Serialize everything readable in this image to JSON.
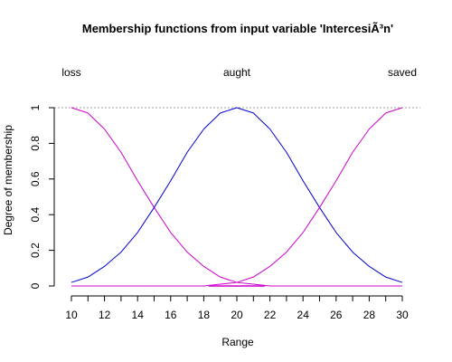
{
  "chart_data": {
    "type": "line",
    "title": "Membership functions from input variable 'IntercesiÃ³n'",
    "xlabel": "Range",
    "ylabel": "Degree of membership",
    "xlim": [
      10,
      30
    ],
    "ylim": [
      0,
      1
    ],
    "x_ticks": [
      10,
      12,
      14,
      16,
      18,
      20,
      22,
      24,
      26,
      28,
      30
    ],
    "x_tick_labels": [
      "10",
      "12",
      "14",
      "16",
      "18",
      "20",
      "22",
      "24",
      "26",
      "28",
      "30"
    ],
    "y_ticks": [
      0,
      0.2,
      0.4,
      0.6,
      0.8,
      1
    ],
    "y_tick_labels": [
      "0",
      "0.2",
      "0.4",
      "0.6",
      "0.8",
      "1"
    ],
    "reference_line_y": 1,
    "grid": false,
    "x": [
      10,
      11,
      12,
      13,
      14,
      15,
      16,
      17,
      18,
      19,
      20,
      21,
      22,
      23,
      24,
      25,
      26,
      27,
      28,
      29,
      30
    ],
    "series": [
      {
        "name": "loss",
        "color": "#cc00cc",
        "values": [
          1,
          0.97,
          0.88,
          0.75,
          0.59,
          0.44,
          0.3,
          0.19,
          0.11,
          0.05,
          0.02,
          0.01,
          0,
          0,
          0,
          0,
          0,
          0,
          0,
          0,
          0
        ]
      },
      {
        "name": "aught",
        "color": "#0000cc",
        "values": [
          0.02,
          0.05,
          0.11,
          0.19,
          0.3,
          0.44,
          0.59,
          0.75,
          0.88,
          0.97,
          1,
          0.97,
          0.88,
          0.75,
          0.59,
          0.44,
          0.3,
          0.19,
          0.11,
          0.05,
          0.02
        ]
      },
      {
        "name": "saved",
        "color": "#cc00cc",
        "values": [
          0,
          0,
          0,
          0,
          0,
          0,
          0,
          0,
          0,
          0.01,
          0.02,
          0.05,
          0.11,
          0.19,
          0.3,
          0.44,
          0.59,
          0.75,
          0.88,
          0.97,
          1
        ]
      }
    ],
    "series_labels": [
      {
        "name": "loss",
        "x": 10
      },
      {
        "name": "aught",
        "x": 20
      },
      {
        "name": "saved",
        "x": 30
      }
    ],
    "axis_color": "#000000",
    "reference_line_color": "#a0a0a0",
    "input_marker": {
      "x_range": [
        18.3,
        21.7
      ],
      "color": "#cc00cc"
    }
  }
}
